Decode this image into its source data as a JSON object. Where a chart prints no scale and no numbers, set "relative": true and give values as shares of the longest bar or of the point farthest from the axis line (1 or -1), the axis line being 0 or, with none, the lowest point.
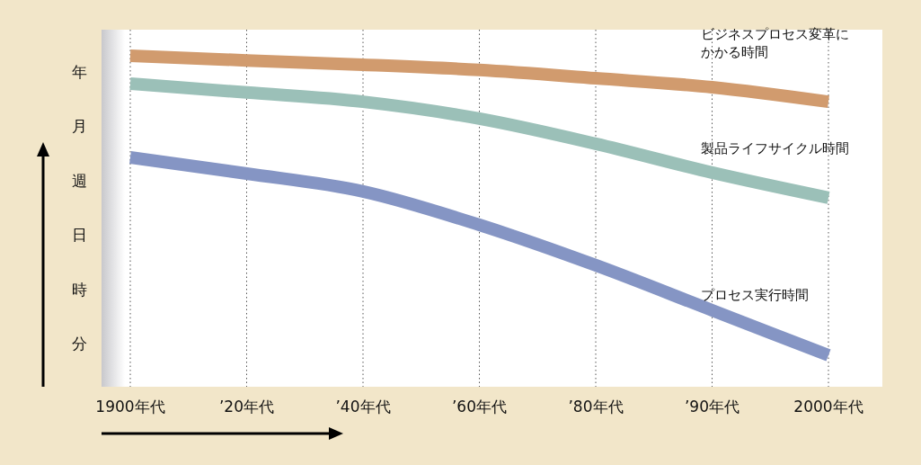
{
  "chart_data": {
    "type": "line",
    "relative": true,
    "categories": [
      "1900年代",
      "’20年代",
      "’40年代",
      "’60年代",
      "’80年代",
      "’90年代",
      "2000年代"
    ],
    "annotations": [
      "年",
      "月",
      "週",
      "日",
      "時",
      "分"
    ],
    "grid": "x",
    "legend": false,
    "line_style": "solid",
    "marker": "none",
    "series": [
      {
        "name": "ビジネスプロセス変革にかかる時間",
        "color": "#d19b6e",
        "values": [
          1,
          0.986,
          0.973,
          0.957,
          0.932,
          0.905,
          0.861
        ]
      },
      {
        "name": "製品ライフサイクル時間",
        "color": "#9bc0b8",
        "values": [
          0.916,
          0.889,
          0.861,
          0.81,
          0.734,
          0.647,
          0.571
        ]
      },
      {
        "name": "プロセス実行時間",
        "color": "#8595c4",
        "values": [
          0.693,
          0.644,
          0.59,
          0.489,
          0.367,
          0.231,
          0.095
        ]
      }
    ]
  }
}
